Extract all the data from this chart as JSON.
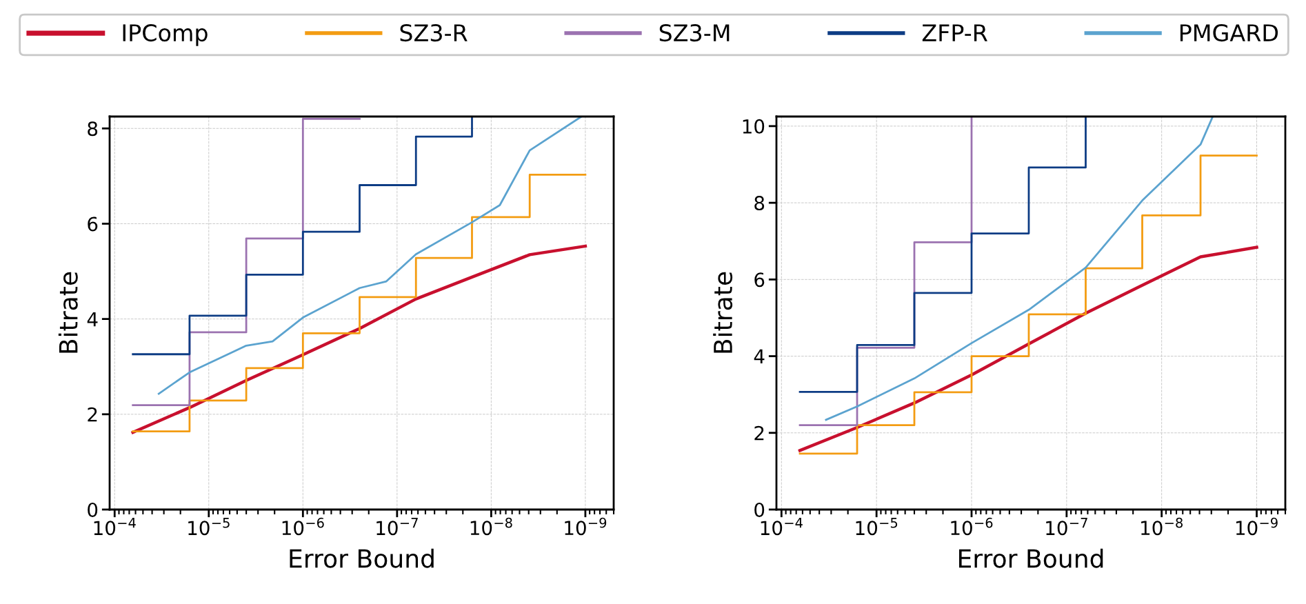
{
  "chart_data": [
    {
      "type": "line",
      "xlabel": "Error Bound",
      "ylabel": "Bitrate",
      "log": "x",
      "grid": true,
      "legend": "top",
      "line_style": "solid",
      "marker": "none",
      "xlim": [
        0.000113,
        5e-10
      ],
      "ylim": [
        0,
        8.25
      ],
      "xticks": [
        {
          "value": 0.0001,
          "label": "10$^{−4}$"
        },
        {
          "value": 1e-05,
          "label": "10$^{−5}$"
        },
        {
          "value": 1e-06,
          "label": "10$^{−6}$"
        },
        {
          "value": 1e-07,
          "label": "10$^{−7}$"
        },
        {
          "value": 1e-08,
          "label": "10$^{−8}$"
        },
        {
          "value": 1e-09,
          "label": "10$^{−9}$"
        }
      ],
      "yticks": [
        0,
        2,
        4,
        6,
        8
      ],
      "series": [
        {
          "name": "IPComp",
          "color": "#c8102e",
          "x": [
            6.4e-05,
            1.6e-05,
            4e-06,
            1e-06,
            2.5e-07,
            6.3e-08,
            1.6e-08,
            3.9e-09,
            1e-09
          ],
          "values": [
            1.62,
            2.14,
            2.71,
            3.25,
            3.8,
            4.42,
            4.88,
            5.35,
            5.53
          ]
        },
        {
          "name": "SZ3-R",
          "type": "step",
          "color": "#f39c12",
          "x": [
            6.4e-05,
            1.6e-05,
            4e-06,
            1e-06,
            2.5e-07,
            6.3e-08,
            1.6e-08,
            3.9e-09,
            1e-09
          ],
          "values": [
            1.64,
            2.29,
            2.97,
            3.7,
            4.46,
            5.28,
            6.14,
            7.03,
            7.03
          ]
        },
        {
          "name": "SZ3-M",
          "type": "step",
          "color": "#9b72b0",
          "x": [
            6.4e-05,
            1.6e-05,
            4e-06,
            1e-06,
            2.5e-07
          ],
          "values": [
            2.19,
            3.72,
            5.69,
            8.2,
            8.2
          ]
        },
        {
          "name": "ZFP-R",
          "type": "step",
          "color": "#0d3c84",
          "x": [
            6.4e-05,
            1.6e-05,
            4e-06,
            1e-06,
            2.5e-07,
            6.3e-08,
            1.6e-08
          ],
          "values": [
            3.26,
            4.07,
            4.93,
            5.83,
            6.81,
            7.83,
            8.25
          ]
        },
        {
          "name": "PMGARD",
          "color": "#5ba3cf",
          "x": [
            3.4e-05,
            1.6e-05,
            4e-06,
            2.1e-06,
            1e-06,
            2.5e-07,
            1.3e-07,
            6.3e-08,
            1.6e-08,
            8.1e-09,
            3.9e-09,
            1.1e-09
          ],
          "values": [
            2.43,
            2.88,
            3.44,
            3.53,
            4.03,
            4.65,
            4.79,
            5.36,
            6.03,
            6.39,
            7.54,
            8.25
          ]
        }
      ]
    },
    {
      "type": "line",
      "xlabel": "Error Bound",
      "ylabel": "Bitrate",
      "log": "x",
      "grid": true,
      "line_style": "solid",
      "marker": "none",
      "xlim": [
        0.000113,
        5e-10
      ],
      "ylim": [
        0,
        10.25
      ],
      "xticks": [
        {
          "value": 0.0001,
          "label": "10$^{−4}$"
        },
        {
          "value": 1e-05,
          "label": "10$^{−5}$"
        },
        {
          "value": 1e-06,
          "label": "10$^{−6}$"
        },
        {
          "value": 1e-07,
          "label": "10$^{−7}$"
        },
        {
          "value": 1e-08,
          "label": "10$^{−8}$"
        },
        {
          "value": 1e-09,
          "label": "10$^{−9}$"
        }
      ],
      "yticks": [
        0,
        2,
        4,
        6,
        8,
        10
      ],
      "series": [
        {
          "color": "#c8102e",
          "x": [
            6.4e-05,
            1.6e-05,
            4e-06,
            1e-06,
            2.5e-07,
            6.3e-08,
            1.6e-08,
            3.9e-09,
            1e-09
          ],
          "values": [
            1.54,
            2.14,
            2.78,
            3.51,
            4.32,
            5.12,
            5.85,
            6.59,
            6.84
          ]
        },
        {
          "type": "step",
          "color": "#f39c12",
          "x": [
            6.4e-05,
            1.6e-05,
            4e-06,
            1e-06,
            2.5e-07,
            6.3e-08,
            1.6e-08,
            3.9e-09,
            1e-09
          ],
          "values": [
            1.46,
            2.2,
            3.06,
            4.0,
            5.09,
            6.29,
            7.67,
            9.23,
            9.23
          ]
        },
        {
          "type": "step",
          "color": "#9b72b0",
          "x": [
            6.4e-05,
            1.6e-05,
            4e-06,
            1e-06
          ],
          "values": [
            2.2,
            4.22,
            6.97,
            10.25
          ]
        },
        {
          "type": "step",
          "color": "#0d3c84",
          "x": [
            6.4e-05,
            1.6e-05,
            4e-06,
            1e-06,
            2.5e-07,
            6.3e-08
          ],
          "values": [
            3.07,
            4.29,
            5.65,
            7.2,
            8.92,
            10.25
          ]
        },
        {
          "color": "#5ba3cf",
          "x": [
            3.4e-05,
            1.6e-05,
            4e-06,
            1e-06,
            2.5e-07,
            6.3e-08,
            1.6e-08,
            3.9e-09,
            2.9e-09
          ],
          "values": [
            2.34,
            2.69,
            3.42,
            4.34,
            5.21,
            6.31,
            8.06,
            9.52,
            10.25
          ]
        }
      ]
    }
  ]
}
